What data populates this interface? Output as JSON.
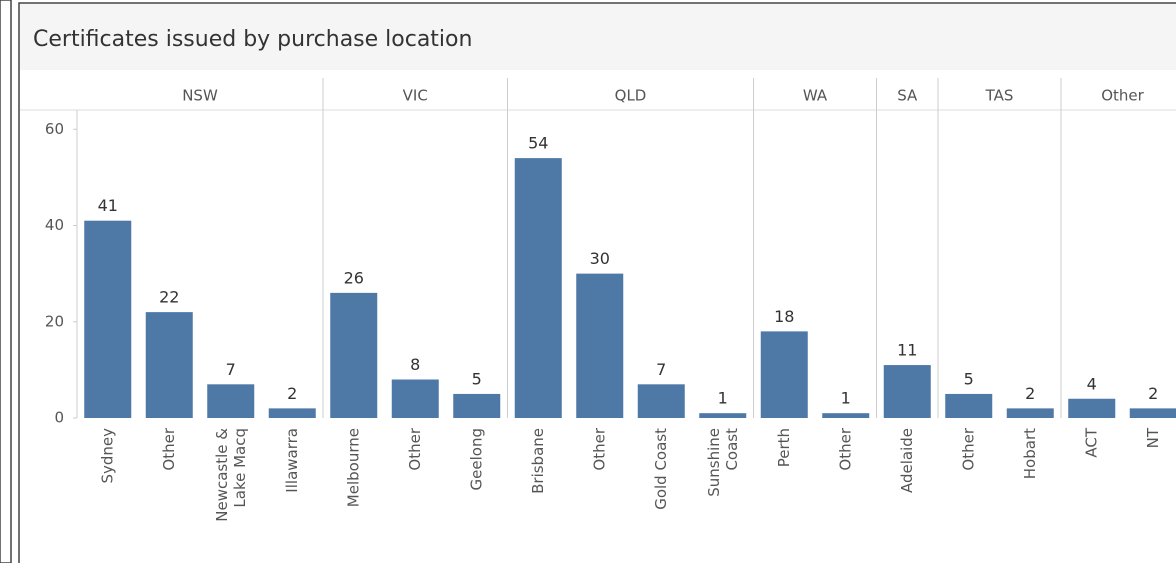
{
  "chart_data": {
    "type": "bar",
    "title": "Certificates issued by purchase location",
    "groups": [
      {
        "name": "NSW",
        "categories": [
          "Sydney",
          "Other",
          [
            "Newcastle &",
            "Lake Macq"
          ],
          "Illawarra"
        ],
        "values": [
          41,
          22,
          7,
          2
        ]
      },
      {
        "name": "VIC",
        "categories": [
          "Melbourne",
          "Other",
          "Geelong"
        ],
        "values": [
          26,
          8,
          5
        ]
      },
      {
        "name": "QLD",
        "categories": [
          "Brisbane",
          "Other",
          "Gold Coast",
          [
            "Sunshine",
            "Coast"
          ]
        ],
        "values": [
          54,
          30,
          7,
          1
        ]
      },
      {
        "name": "WA",
        "categories": [
          "Perth",
          "Other"
        ],
        "values": [
          18,
          1
        ]
      },
      {
        "name": "SA",
        "categories": [
          "Adelaide"
        ],
        "values": [
          11
        ]
      },
      {
        "name": "TAS",
        "categories": [
          "Other",
          "Hobart"
        ],
        "values": [
          5,
          2
        ]
      },
      {
        "name": "Other",
        "categories": [
          "ACT",
          "NT"
        ],
        "values": [
          4,
          2
        ]
      }
    ],
    "color": "#4e79a7",
    "ylim": [
      0,
      64
    ],
    "yticks": [
      0,
      20,
      40,
      60
    ]
  }
}
